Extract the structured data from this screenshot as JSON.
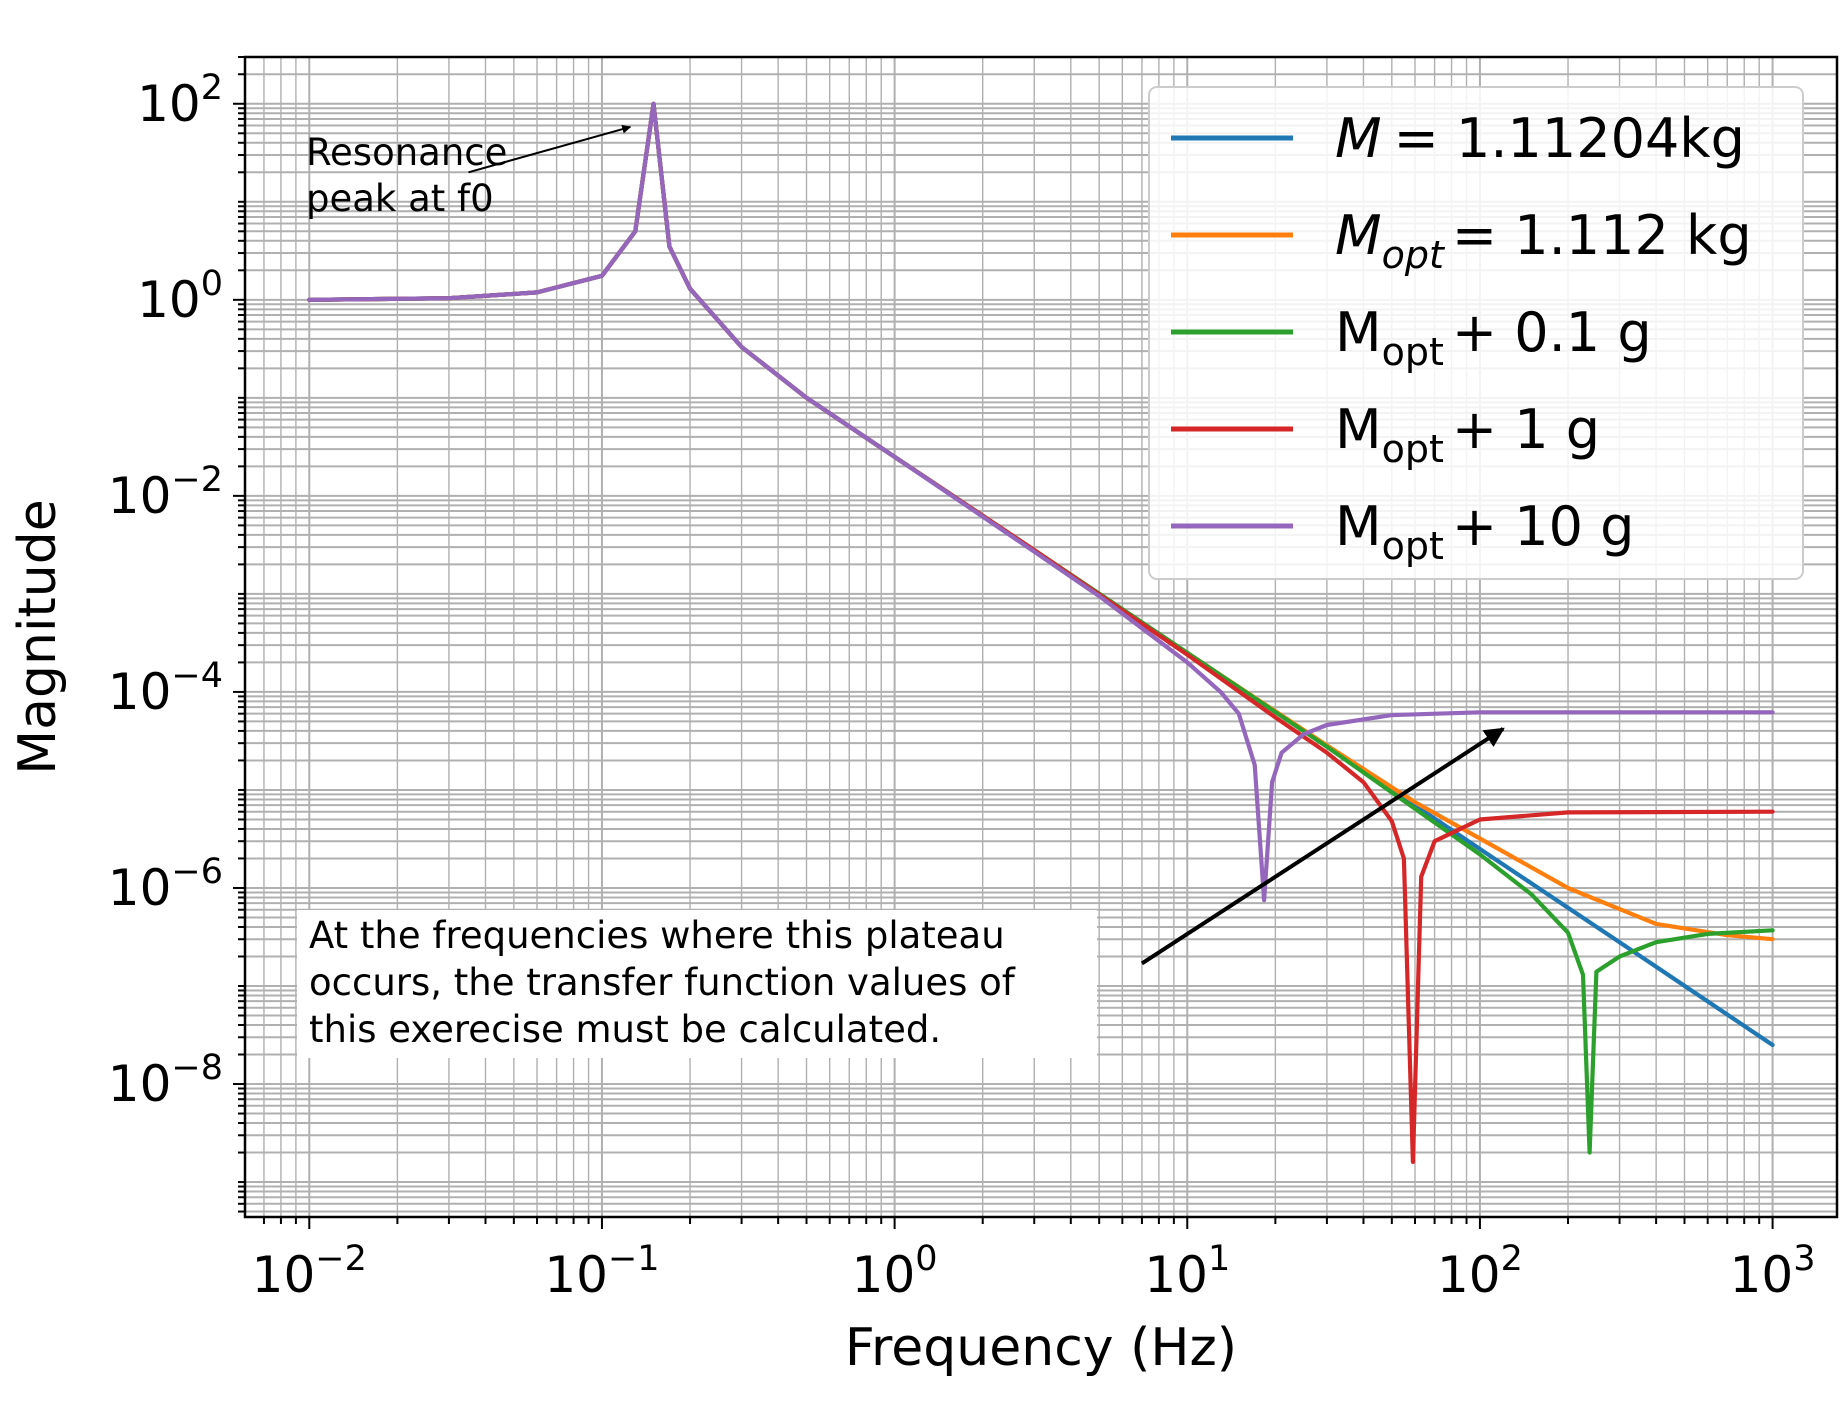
{
  "chart_data": {
    "type": "line",
    "xlabel": "Frequency (Hz)",
    "ylabel": "Magnitude",
    "xscale": "log",
    "yscale": "log",
    "xlim": [
      0.00603,
      1660
    ],
    "ylim": [
      4.4e-10,
      300
    ],
    "grid": "major and minor",
    "legend_position": "top-right",
    "x_ticks": [
      {
        "value": 0.01,
        "base": "10",
        "exp": "−2"
      },
      {
        "value": 0.1,
        "base": "10",
        "exp": "−1"
      },
      {
        "value": 1,
        "base": "10",
        "exp": "0"
      },
      {
        "value": 10,
        "base": "10",
        "exp": "1"
      },
      {
        "value": 100,
        "base": "10",
        "exp": "2"
      },
      {
        "value": 1000,
        "base": "10",
        "exp": "3"
      }
    ],
    "y_ticks": [
      {
        "value": 100,
        "base": "10",
        "exp": "2"
      },
      {
        "value": 1,
        "base": "10",
        "exp": "0"
      },
      {
        "value": 0.01,
        "base": "10",
        "exp": "−2"
      },
      {
        "value": 0.0001,
        "base": "10",
        "exp": "−4"
      },
      {
        "value": 1e-06,
        "base": "10",
        "exp": "−6"
      },
      {
        "value": 1e-08,
        "base": "10",
        "exp": "−8"
      }
    ],
    "series": [
      {
        "name": "M = 1.11204kg",
        "legend": {
          "main": "M",
          "main_italic": true,
          "sub": "",
          "rest": "= 1.11204kg"
        },
        "color": "#1f77b4",
        "points": [
          [
            0.01,
            1.0
          ],
          [
            0.03,
            1.04
          ],
          [
            0.06,
            1.19
          ],
          [
            0.1,
            1.76
          ],
          [
            0.13,
            5.0
          ],
          [
            0.15,
            100
          ],
          [
            0.17,
            3.5
          ],
          [
            0.2,
            1.3
          ],
          [
            0.3,
            0.33
          ],
          [
            0.5,
            0.1
          ],
          [
            1,
            0.025
          ],
          [
            3,
            0.0028
          ],
          [
            10,
            0.00025
          ],
          [
            30,
            2.8e-05
          ],
          [
            100,
            2.5e-06
          ],
          [
            300,
            2.8e-07
          ],
          [
            1000,
            2.5e-08
          ]
        ]
      },
      {
        "name": "Mopt = 1.112 kg",
        "legend": {
          "main": "M",
          "main_italic": true,
          "sub": "opt",
          "rest": "= 1.112 kg"
        },
        "color": "#ff7f0e",
        "points": [
          [
            0.01,
            1.0
          ],
          [
            0.03,
            1.04
          ],
          [
            0.06,
            1.19
          ],
          [
            0.1,
            1.76
          ],
          [
            0.13,
            5.0
          ],
          [
            0.15,
            100
          ],
          [
            0.17,
            3.5
          ],
          [
            0.2,
            1.3
          ],
          [
            0.3,
            0.33
          ],
          [
            0.5,
            0.1
          ],
          [
            1,
            0.025
          ],
          [
            3,
            0.0028
          ],
          [
            10,
            0.00025
          ],
          [
            30,
            2.85e-05
          ],
          [
            60,
            7.5e-06
          ],
          [
            100,
            3.2e-06
          ],
          [
            200,
            1e-06
          ],
          [
            400,
            4.3e-07
          ],
          [
            700,
            3.3e-07
          ],
          [
            1000,
            3e-07
          ]
        ]
      },
      {
        "name": "Mopt + 0.1 g",
        "legend": {
          "main": "M",
          "main_italic": false,
          "sub": "opt",
          "rest": "+ 0.1 g"
        },
        "color": "#2ca02c",
        "points": [
          [
            0.01,
            1.0
          ],
          [
            0.03,
            1.04
          ],
          [
            0.06,
            1.19
          ],
          [
            0.1,
            1.76
          ],
          [
            0.13,
            5.0
          ],
          [
            0.15,
            100
          ],
          [
            0.17,
            3.5
          ],
          [
            0.2,
            1.3
          ],
          [
            0.3,
            0.33
          ],
          [
            0.5,
            0.1
          ],
          [
            1,
            0.025
          ],
          [
            3,
            0.0028
          ],
          [
            10,
            0.00025
          ],
          [
            30,
            2.76e-05
          ],
          [
            100,
            2.2e-06
          ],
          [
            150,
            8.6e-07
          ],
          [
            200,
            3.5e-07
          ],
          [
            225,
            1.3e-07
          ],
          [
            237,
            2e-09
          ],
          [
            250,
            1.4e-07
          ],
          [
            300,
            2e-07
          ],
          [
            400,
            2.8e-07
          ],
          [
            600,
            3.4e-07
          ],
          [
            1000,
            3.7e-07
          ]
        ]
      },
      {
        "name": "Mopt + 1 g",
        "legend": {
          "main": "M",
          "main_italic": false,
          "sub": "opt",
          "rest": "+ 1 g"
        },
        "color": "#d62728",
        "points": [
          [
            0.01,
            1.0
          ],
          [
            0.03,
            1.04
          ],
          [
            0.06,
            1.19
          ],
          [
            0.1,
            1.76
          ],
          [
            0.13,
            5.0
          ],
          [
            0.15,
            100
          ],
          [
            0.17,
            3.5
          ],
          [
            0.2,
            1.3
          ],
          [
            0.3,
            0.33
          ],
          [
            0.5,
            0.1
          ],
          [
            1,
            0.025
          ],
          [
            3,
            0.0028
          ],
          [
            10,
            0.00024
          ],
          [
            20,
            5.5e-05
          ],
          [
            30,
            2.4e-05
          ],
          [
            40,
            1.2e-05
          ],
          [
            50,
            4.8e-06
          ],
          [
            55,
            2e-06
          ],
          [
            59,
            1.6e-09
          ],
          [
            63,
            1.3e-06
          ],
          [
            70,
            3e-06
          ],
          [
            100,
            5e-06
          ],
          [
            200,
            5.9e-06
          ],
          [
            1000,
            6e-06
          ]
        ]
      },
      {
        "name": "Mopt + 10 g",
        "legend": {
          "main": "M",
          "main_italic": false,
          "sub": "opt",
          "rest": "+ 10 g"
        },
        "color": "#9467bd",
        "points": [
          [
            0.01,
            1.0
          ],
          [
            0.03,
            1.04
          ],
          [
            0.06,
            1.19
          ],
          [
            0.1,
            1.76
          ],
          [
            0.13,
            5.0
          ],
          [
            0.15,
            100
          ],
          [
            0.17,
            3.5
          ],
          [
            0.2,
            1.3
          ],
          [
            0.3,
            0.33
          ],
          [
            0.5,
            0.1
          ],
          [
            1,
            0.025
          ],
          [
            3,
            0.0027
          ],
          [
            5,
            0.00095
          ],
          [
            10,
            0.0002
          ],
          [
            13,
            0.0001
          ],
          [
            15,
            6e-05
          ],
          [
            17,
            1.8e-05
          ],
          [
            18.3,
            7.5e-07
          ],
          [
            19.5,
            1.2e-05
          ],
          [
            21,
            2.4e-05
          ],
          [
            25,
            3.7e-05
          ],
          [
            30,
            4.6e-05
          ],
          [
            50,
            5.8e-05
          ],
          [
            100,
            6.2e-05
          ],
          [
            1000,
            6.2e-05
          ]
        ]
      }
    ],
    "annotations": [
      {
        "lines": [
          "Resonance",
          "peak at f0"
        ],
        "arrow_from": [
          0.035,
          20
        ],
        "arrow_to": [
          0.125,
          58
        ]
      },
      {
        "lines": [
          "At the frequencies where this plateau",
          "occurs, the transfer function values of",
          "this exerecise must be calculated."
        ],
        "arrow_from": [
          7.0,
          1.7e-07
        ],
        "arrow_to": [
          120,
          4.2e-05
        ]
      }
    ]
  }
}
